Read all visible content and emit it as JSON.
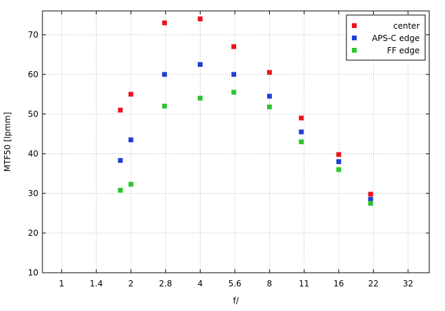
{
  "chart_data": {
    "type": "scatter",
    "x_tick_labels": [
      "1",
      "1.4",
      "2",
      "2.8",
      "4",
      "5.6",
      "8",
      "11",
      "16",
      "22",
      "32"
    ],
    "y_ticks": [
      10,
      20,
      30,
      40,
      50,
      60,
      70
    ],
    "xlabel": "f/",
    "ylabel": "MTF50 [lpmm]",
    "ylim": [
      10,
      76
    ],
    "xscale": "log2-aperture",
    "grid": true,
    "legend_position": "top-right",
    "series": [
      {
        "name": "center",
        "color": "#e8141c",
        "points": [
          [
            1.8,
            51
          ],
          [
            2,
            55
          ],
          [
            2.8,
            73
          ],
          [
            4,
            74
          ],
          [
            5.6,
            67
          ],
          [
            8,
            60.5
          ],
          [
            11,
            49
          ],
          [
            16,
            39.8
          ],
          [
            22,
            29.8
          ]
        ]
      },
      {
        "name": "APS-C edge",
        "color": "#1f3fd6",
        "points": [
          [
            1.8,
            38.3
          ],
          [
            2,
            43.5
          ],
          [
            2.8,
            60
          ],
          [
            4,
            62.5
          ],
          [
            5.6,
            60
          ],
          [
            8,
            54.5
          ],
          [
            11,
            45.5
          ],
          [
            16,
            38
          ],
          [
            22,
            28.5
          ]
        ]
      },
      {
        "name": "FF edge",
        "color": "#2ec42e",
        "points": [
          [
            1.8,
            30.8
          ],
          [
            2,
            32.3
          ],
          [
            2.8,
            52
          ],
          [
            4,
            54
          ],
          [
            5.6,
            55.5
          ],
          [
            8,
            51.8
          ],
          [
            11,
            43
          ],
          [
            16,
            36
          ],
          [
            22,
            27.5
          ]
        ]
      }
    ]
  }
}
